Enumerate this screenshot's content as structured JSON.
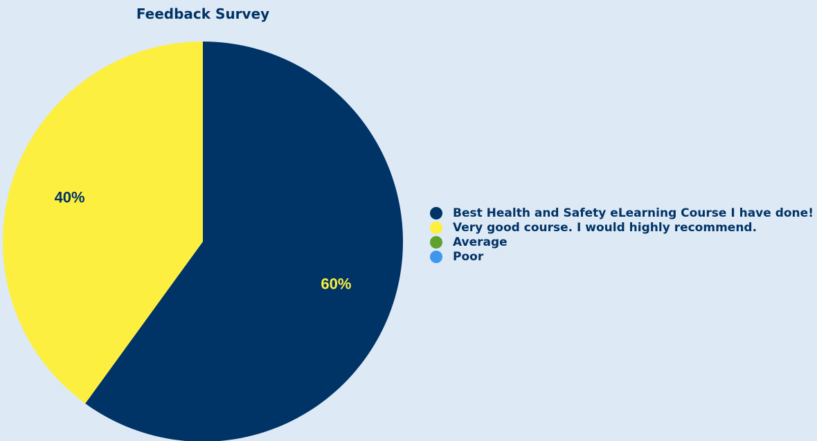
{
  "chart_data": {
    "type": "pie",
    "title": "Feedback Survey",
    "categories": [
      "Best Health and Safety eLearning Course I have done!",
      "Very good course. I would highly recommend.",
      "Average",
      "Poor"
    ],
    "values": [
      60,
      40,
      0,
      0
    ],
    "value_labels": [
      "60%",
      "40%",
      "",
      ""
    ],
    "colors": [
      "#003366",
      "#fcef3f",
      "#5ea12c",
      "#3d97ee"
    ],
    "label_colors": [
      "#fcef3f",
      "#003366",
      "#ffffff",
      "#ffffff"
    ],
    "legend_position": "right"
  }
}
